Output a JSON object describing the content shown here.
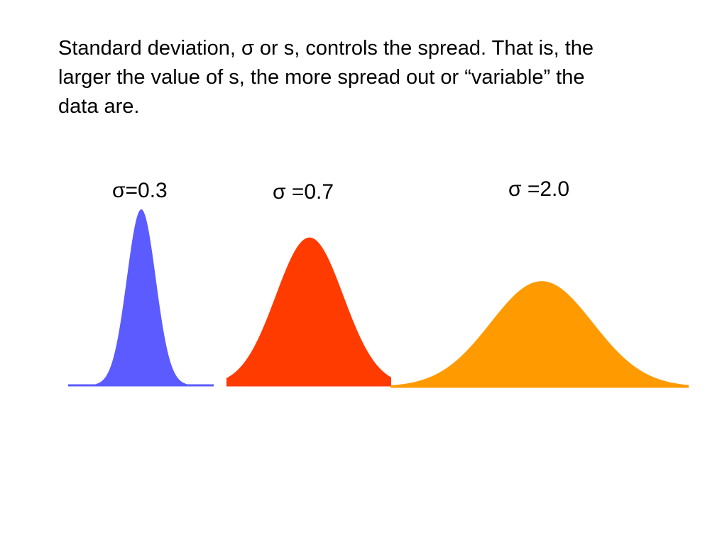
{
  "slide": {
    "text_lines": [
      "Standard deviation, σ or s, controls the spread.  That is, the",
      "larger the value of s, the more spread out or “variable” the",
      "data are."
    ]
  },
  "chart_data": {
    "type": "area",
    "distribution": "normal",
    "panels": [
      {
        "title": "σ=0.3",
        "sigma": 0.3,
        "color": "#5b5bff",
        "relative_peak": 1.0
      },
      {
        "title": "σ =0.7",
        "sigma": 0.7,
        "color": "#ff3b00",
        "relative_peak": 0.84
      },
      {
        "title": "σ =2.0",
        "sigma": 2.0,
        "color": "#ff9a00",
        "relative_peak": 0.6
      }
    ]
  }
}
